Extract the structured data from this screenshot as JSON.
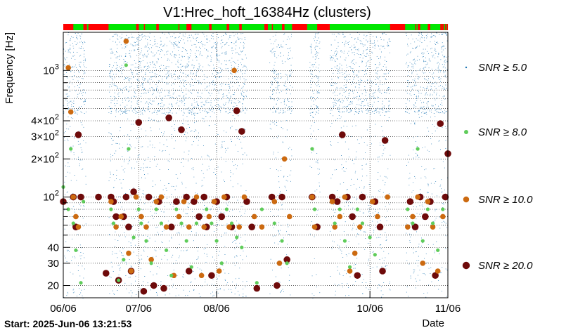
{
  "chart_data": {
    "type": "scatter",
    "title": "V1:Hrec_hoft_16384Hz (clusters)",
    "xlabel": "Date",
    "ylabel": "Frequency [Hz]",
    "footer": "Start: 2025-Jun-06 13:21:53",
    "x_scale": "time",
    "x_range": [
      "2025-06-06",
      "2025-11-06"
    ],
    "x_ticks": [
      {
        "label": "06/06",
        "date": "2025-06-06"
      },
      {
        "label": "07/06",
        "date": "2025-07-06"
      },
      {
        "label": "08/06",
        "date": "2025-08-06"
      },
      {
        "label": "10/06",
        "date": "2025-10-06"
      },
      {
        "label": "11/06",
        "date": "2025-11-06"
      }
    ],
    "y_scale": "log",
    "ylim": [
      16,
      2000
    ],
    "y_ticks": [
      {
        "value": 20,
        "label": "20"
      },
      {
        "value": 30,
        "label": "30"
      },
      {
        "value": 40,
        "label": "40"
      },
      {
        "value": 100,
        "label": "10",
        "exp": "2"
      },
      {
        "value": 200,
        "label": "2×10",
        "exp": "2"
      },
      {
        "value": 300,
        "label": "3×10",
        "exp": "2"
      },
      {
        "value": 400,
        "label": "4×10",
        "exp": "2"
      },
      {
        "value": 1000,
        "label": "10",
        "exp": "3"
      }
    ],
    "grid": true,
    "legend_position": "right",
    "legend": [
      {
        "label": "SNR ≥ 5.0",
        "color": "#1f77b4"
      },
      {
        "label": "SNR ≥ 8.0",
        "color": "#5fcc5a"
      },
      {
        "label": "SNR ≥ 10.0",
        "color": "#cc6a10"
      },
      {
        "label": "SNR ≥ 20.0",
        "color": "#6e0a0a"
      }
    ],
    "segment_colors": {
      "up": "#00e600",
      "down": "#ff0000"
    },
    "segments_down": [
      [
        "2025-06-06",
        "2025-06-10"
      ],
      [
        "2025-06-14",
        "2025-06-15"
      ],
      [
        "2025-06-16",
        "2025-06-24"
      ],
      [
        "2025-07-05",
        "2025-07-06"
      ],
      [
        "2025-07-13",
        "2025-07-14"
      ],
      [
        "2025-07-25",
        "2025-07-27"
      ],
      [
        "2025-08-03",
        "2025-08-04"
      ],
      [
        "2025-08-10",
        "2025-08-11"
      ],
      [
        "2025-08-15",
        "2025-08-16"
      ],
      [
        "2025-08-25",
        "2025-08-26"
      ],
      [
        "2025-09-01",
        "2025-09-02"
      ],
      [
        "2025-09-05",
        "2025-09-11"
      ],
      [
        "2025-09-15",
        "2025-09-20"
      ],
      [
        "2025-10-14",
        "2025-10-20"
      ],
      [
        "2025-10-25",
        "2025-10-26"
      ],
      [
        "2025-10-29",
        "2025-10-30"
      ],
      [
        "2025-11-03",
        "2025-11-04"
      ]
    ],
    "data_gaps": [
      [
        "2025-06-15",
        "2025-06-24"
      ],
      [
        "2025-08-18",
        "2025-08-27"
      ],
      [
        "2025-09-05",
        "2025-09-12"
      ],
      [
        "2025-09-16",
        "2025-09-20"
      ],
      [
        "2025-10-14",
        "2025-10-20"
      ]
    ],
    "series": [
      {
        "name": "SNR ≥ 20.0",
        "x": [
          "2025-06-06",
          "2025-06-10",
          "2025-06-11",
          "2025-06-12",
          "2025-06-13",
          "2025-06-20",
          "2025-06-23",
          "2025-06-25",
          "2025-06-26",
          "2025-06-27",
          "2025-06-28",
          "2025-06-30",
          "2025-07-01",
          "2025-07-02",
          "2025-07-03",
          "2025-07-04",
          "2025-07-06",
          "2025-07-08",
          "2025-07-10",
          "2025-07-12",
          "2025-07-14",
          "2025-07-16",
          "2025-07-18",
          "2025-07-19",
          "2025-07-21",
          "2025-07-23",
          "2025-07-25",
          "2025-07-26",
          "2025-07-28",
          "2025-07-30",
          "2025-08-01",
          "2025-08-02",
          "2025-08-04",
          "2025-08-06",
          "2025-08-08",
          "2025-08-10",
          "2025-08-12",
          "2025-08-14",
          "2025-08-16",
          "2025-08-18",
          "2025-08-20",
          "2025-08-22",
          "2025-08-28",
          "2025-08-30",
          "2025-09-01",
          "2025-09-03",
          "2025-09-13",
          "2025-09-15",
          "2025-09-21",
          "2025-09-23",
          "2025-09-25",
          "2025-09-27",
          "2025-09-29",
          "2025-10-01",
          "2025-10-03",
          "2025-10-08",
          "2025-10-10",
          "2025-10-11",
          "2025-10-12",
          "2025-10-22",
          "2025-10-24",
          "2025-10-26",
          "2025-10-28",
          "2025-10-30",
          "2025-11-01",
          "2025-11-03",
          "2025-11-05",
          "2025-11-06"
        ],
        "y": [
          92,
          100,
          58,
          310,
          100,
          100,
          25,
          100,
          92,
          70,
          22,
          70,
          100,
          58,
          26,
          110,
          388,
          18,
          100,
          20,
          92,
          19,
          422,
          58,
          92,
          340,
          100,
          26,
          92,
          70,
          100,
          58,
          24,
          92,
          70,
          100,
          58,
          480,
          330,
          92,
          58,
          19,
          100,
          20,
          100,
          32,
          100,
          58,
          100,
          92,
          310,
          100,
          70,
          24,
          100,
          92,
          58,
          26,
          280,
          92,
          58,
          100,
          70,
          92,
          24,
          380,
          100,
          220
        ]
      },
      {
        "name": "SNR ≥ 10.0",
        "x": [
          "2025-06-08",
          "2025-06-09",
          "2025-06-10",
          "2025-06-11",
          "2025-06-12",
          "2025-06-25",
          "2025-06-27",
          "2025-06-29",
          "2025-07-01",
          "2025-07-02",
          "2025-07-03",
          "2025-07-05",
          "2025-07-07",
          "2025-07-09",
          "2025-07-11",
          "2025-07-13",
          "2025-07-15",
          "2025-07-17",
          "2025-07-20",
          "2025-07-22",
          "2025-07-24",
          "2025-07-26",
          "2025-07-29",
          "2025-07-31",
          "2025-08-01",
          "2025-08-03",
          "2025-08-05",
          "2025-08-07",
          "2025-08-09",
          "2025-08-11",
          "2025-08-13",
          "2025-08-15",
          "2025-08-17",
          "2025-08-21",
          "2025-08-24",
          "2025-08-29",
          "2025-08-31",
          "2025-09-02",
          "2025-09-04",
          "2025-09-13",
          "2025-09-14",
          "2025-09-21",
          "2025-09-22",
          "2025-09-24",
          "2025-09-26",
          "2025-09-28",
          "2025-09-30",
          "2025-10-02",
          "2025-10-07",
          "2025-10-09",
          "2025-10-13",
          "2025-10-21",
          "2025-10-23",
          "2025-10-25",
          "2025-10-27",
          "2025-10-29",
          "2025-10-31",
          "2025-11-02",
          "2025-11-04"
        ],
        "y": [
          1050,
          470,
          100,
          70,
          58,
          92,
          58,
          70,
          1700,
          36,
          26,
          100,
          70,
          58,
          32,
          92,
          100,
          58,
          24,
          70,
          92,
          58,
          100,
          24,
          58,
          70,
          92,
          26,
          100,
          58,
          1000,
          58,
          100,
          70,
          58,
          92,
          30,
          200,
          70,
          100,
          58,
          92,
          58,
          70,
          100,
          26,
          36,
          58,
          92,
          70,
          100,
          58,
          70,
          100,
          30,
          92,
          58,
          26,
          70
        ]
      },
      {
        "name": "SNR ≥ 8.0",
        "x": [
          "2025-06-06",
          "2025-06-08",
          "2025-06-09",
          "2025-06-10",
          "2025-06-11",
          "2025-06-13",
          "2025-06-14",
          "2025-06-25",
          "2025-06-26",
          "2025-06-28",
          "2025-06-30",
          "2025-07-01",
          "2025-07-02",
          "2025-07-04",
          "2025-07-06",
          "2025-07-07",
          "2025-07-09",
          "2025-07-11",
          "2025-07-13",
          "2025-07-15",
          "2025-07-17",
          "2025-07-19",
          "2025-07-21",
          "2025-07-23",
          "2025-07-25",
          "2025-07-27",
          "2025-07-29",
          "2025-08-02",
          "2025-08-04",
          "2025-08-06",
          "2025-08-08",
          "2025-08-10",
          "2025-08-12",
          "2025-08-14",
          "2025-08-16",
          "2025-08-22",
          "2025-08-24",
          "2025-08-29",
          "2025-09-01",
          "2025-09-03",
          "2025-09-13",
          "2025-09-14",
          "2025-09-22",
          "2025-09-24",
          "2025-09-26",
          "2025-09-28",
          "2025-10-01",
          "2025-10-03",
          "2025-10-06",
          "2025-10-08",
          "2025-10-21",
          "2025-10-23",
          "2025-10-25",
          "2025-10-27",
          "2025-10-29",
          "2025-10-31",
          "2025-11-02",
          "2025-11-04"
        ],
        "y": [
          120,
          80,
          240,
          62,
          38,
          21,
          92,
          80,
          62,
          22,
          32,
          1100,
          240,
          48,
          80,
          62,
          45,
          30,
          80,
          62,
          38,
          24,
          80,
          62,
          45,
          28,
          62,
          80,
          62,
          45,
          30,
          80,
          62,
          48,
          40,
          21,
          80,
          62,
          45,
          30,
          240,
          80,
          62,
          80,
          45,
          28,
          80,
          62,
          48,
          35,
          80,
          62,
          240,
          45,
          80,
          62,
          38,
          80
        ]
      }
    ]
  }
}
